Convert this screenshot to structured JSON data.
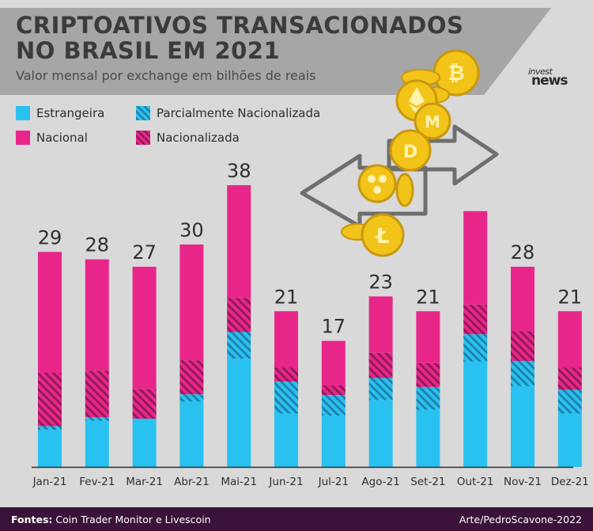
{
  "header": {
    "title_line1": "CRIPTOATIVOS TRANSACIONADOS",
    "title_line2": "NO BRASIL EM 2021",
    "subtitle": "Valor mensal por exchange em bilhões de reais"
  },
  "logo": {
    "line1": "invest",
    "line2": "news"
  },
  "legend": {
    "items": [
      {
        "label": "Estrangeira",
        "color": "#29c1f0",
        "pattern": "solid"
      },
      {
        "label": "Parcialmente Nacionalizada",
        "color": "#29c1f0",
        "pattern": "hatched"
      },
      {
        "label": "Nacional",
        "color": "#e8268a",
        "pattern": "solid"
      },
      {
        "label": "Nacionalizada",
        "color": "#e8268a",
        "pattern": "hatched"
      }
    ]
  },
  "colors": {
    "background": "#d9d9d9",
    "header_band": "#a6a6a6",
    "estrangeira": "#29c1f0",
    "parcial": "#29c1f0",
    "parcial_dark": "#1f7fa8",
    "nacional": "#e8268a",
    "nacionalizada": "#e8268a",
    "nacionalizada_dark": "#8e1a55",
    "footer": "#3a123a",
    "coin": "#f2c318"
  },
  "chart_data": {
    "type": "bar",
    "stacked": true,
    "categories": [
      "Jan-21",
      "Fev-21",
      "Mar-21",
      "Abr-21",
      "Mai-21",
      "Jun-21",
      "Jul-21",
      "Ago-21",
      "Set-21",
      "Out-21",
      "Nov-21",
      "Dez-21"
    ],
    "series": [
      {
        "name": "Estrangeira",
        "values": [
          5.0,
          6.2,
          6.5,
          8.8,
          14.6,
          7.2,
          6.9,
          9.0,
          7.7,
          14.2,
          10.9,
          7.2
        ]
      },
      {
        "name": "Parcialmente Nacionalizada",
        "values": [
          0.5,
          0.5,
          0.0,
          1.0,
          3.6,
          4.3,
          2.8,
          3.0,
          3.1,
          3.7,
          3.4,
          3.2
        ]
      },
      {
        "name": "Nacionalizada",
        "values": [
          7.2,
          6.3,
          4.0,
          4.6,
          4.6,
          1.9,
          1.3,
          3.4,
          3.2,
          4.0,
          4.0,
          3.0
        ]
      },
      {
        "name": "Nacional",
        "values": [
          16.3,
          15.0,
          16.5,
          15.6,
          15.2,
          7.6,
          6.0,
          7.6,
          7.0,
          12.6,
          8.7,
          7.6
        ]
      }
    ],
    "totals": [
      "29",
      "28",
      "27",
      "30",
      "38",
      "21",
      "17",
      "23",
      "21",
      "",
      "28",
      "21"
    ],
    "ylim": [
      0,
      38
    ],
    "grid": false,
    "legend_position": "top-left"
  },
  "footer": {
    "source_label": "Fontes:",
    "source_text": "Coin Trader Monitor e Livescoin",
    "credit": "Arte/PedroScavone-2022"
  }
}
